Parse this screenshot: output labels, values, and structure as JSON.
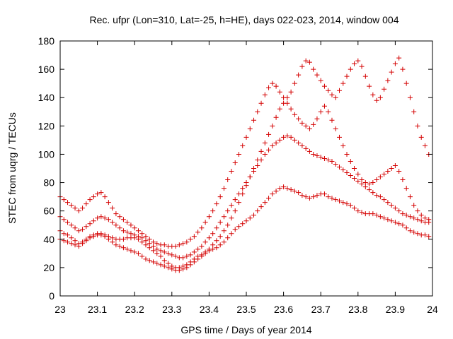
{
  "chart_data": {
    "type": "scatter",
    "title": "Rec. ufpr (Lon=310, Lat=-25, h=HE), days 022-023, 2014, window 004",
    "xlabel": "GPS time / Days of year 2014",
    "ylabel": "STEC from uqrg / TECUs",
    "xlim": [
      23,
      24
    ],
    "ylim": [
      0,
      180
    ],
    "xticks": [
      "23",
      "23.1",
      "23.2",
      "23.3",
      "23.4",
      "23.5",
      "23.6",
      "23.7",
      "23.8",
      "23.9",
      "24"
    ],
    "yticks": [
      "0",
      "20",
      "40",
      "60",
      "80",
      "100",
      "120",
      "140",
      "160",
      "180"
    ],
    "grid": false,
    "legend": "none",
    "marker": "plus",
    "color": "#d40000",
    "series": [
      {
        "x": [
          23.0,
          23.01,
          23.02,
          23.03,
          23.04,
          23.05,
          23.06,
          23.07,
          23.08,
          23.09,
          23.1,
          23.11,
          23.12,
          23.13,
          23.14,
          23.15,
          23.16,
          23.17,
          23.18,
          23.19,
          23.2,
          23.21,
          23.22,
          23.23,
          23.24,
          23.25,
          23.26,
          23.27,
          23.28,
          23.29,
          23.3,
          23.31,
          23.32,
          23.33,
          23.34,
          23.35,
          23.36,
          23.37,
          23.38,
          23.39,
          23.4,
          23.41,
          23.42,
          23.43,
          23.44,
          23.45,
          23.46,
          23.47,
          23.48,
          23.49,
          23.5,
          23.51,
          23.52,
          23.53,
          23.54,
          23.55,
          23.56,
          23.57,
          23.58,
          23.59,
          23.6,
          23.61,
          23.62,
          23.63,
          23.64,
          23.65,
          23.66,
          23.67,
          23.68,
          23.69,
          23.7,
          23.71,
          23.72,
          23.73,
          23.74,
          23.75,
          23.76,
          23.77,
          23.78,
          23.79,
          23.8,
          23.81,
          23.82,
          23.83,
          23.84,
          23.85,
          23.86,
          23.87,
          23.88,
          23.89,
          23.9,
          23.91,
          23.92,
          23.93,
          23.94,
          23.95,
          23.96,
          23.97,
          23.98,
          23.99
        ],
        "y": [
          46,
          44,
          43,
          41,
          39,
          37,
          38,
          40,
          42,
          43,
          44,
          44,
          43,
          42,
          41,
          40,
          40,
          40,
          41,
          41,
          41,
          40,
          38,
          36,
          34,
          32,
          30,
          28,
          25,
          23,
          21,
          20,
          20,
          21,
          22,
          24,
          26,
          28,
          29,
          31,
          32,
          33,
          34,
          36,
          38,
          41,
          44,
          47,
          49,
          51,
          53,
          55,
          57,
          60,
          63,
          66,
          69,
          72,
          74,
          76,
          77,
          76,
          75,
          74,
          73,
          71,
          70,
          69,
          70,
          71,
          72,
          72,
          70,
          69,
          68,
          67,
          66,
          65,
          64,
          62,
          60,
          59,
          58,
          58,
          58,
          57,
          56,
          55,
          54,
          53,
          52,
          51,
          50,
          48,
          46,
          45,
          44,
          43,
          43,
          42
        ]
      },
      {
        "x": [
          23.0,
          23.01,
          23.02,
          23.03,
          23.04,
          23.05,
          23.06,
          23.07,
          23.08,
          23.09,
          23.1,
          23.11,
          23.12,
          23.13,
          23.14,
          23.15,
          23.16,
          23.17,
          23.18,
          23.19,
          23.2,
          23.21,
          23.22,
          23.23,
          23.24,
          23.25,
          23.26,
          23.27,
          23.28,
          23.29,
          23.3,
          23.31,
          23.32,
          23.33,
          23.34,
          23.35,
          23.36,
          23.37,
          23.38,
          23.39,
          23.4,
          23.41,
          23.42,
          23.43,
          23.44,
          23.45,
          23.46,
          23.47,
          23.48,
          23.49,
          23.5,
          23.51,
          23.52,
          23.53,
          23.54,
          23.55,
          23.56,
          23.57,
          23.58,
          23.59,
          23.6,
          23.61,
          23.62,
          23.63,
          23.64,
          23.65,
          23.66,
          23.67,
          23.68,
          23.69,
          23.7,
          23.71,
          23.72,
          23.73,
          23.74,
          23.75,
          23.76,
          23.77,
          23.78,
          23.79,
          23.8,
          23.81,
          23.82,
          23.83,
          23.84,
          23.85,
          23.86,
          23.87,
          23.88,
          23.89,
          23.9,
          23.91,
          23.92,
          23.93,
          23.94,
          23.95,
          23.96,
          23.97,
          23.98,
          23.99
        ],
        "y": [
          56,
          54,
          52,
          50,
          48,
          46,
          47,
          49,
          51,
          53,
          55,
          56,
          55,
          54,
          52,
          50,
          48,
          46,
          45,
          44,
          43,
          42,
          41,
          39,
          37,
          35,
          33,
          32,
          31,
          30,
          29,
          28,
          27,
          27,
          28,
          29,
          31,
          33,
          35,
          38,
          41,
          44,
          48,
          52,
          56,
          60,
          64,
          68,
          72,
          76,
          80,
          84,
          88,
          92,
          96,
          100,
          103,
          106,
          108,
          110,
          112,
          113,
          112,
          110,
          108,
          106,
          104,
          102,
          100,
          99,
          98,
          97,
          96,
          95,
          93,
          91,
          89,
          87,
          85,
          83,
          81,
          79,
          77,
          75,
          73,
          71,
          70,
          68,
          66,
          64,
          62,
          60,
          58,
          57,
          56,
          55,
          54,
          53,
          52,
          52
        ]
      },
      {
        "x": [
          23.0,
          23.01,
          23.02,
          23.03,
          23.04,
          23.05,
          23.06,
          23.07,
          23.08,
          23.09,
          23.1,
          23.11,
          23.12,
          23.13,
          23.14,
          23.15,
          23.16,
          23.17,
          23.18,
          23.19,
          23.2,
          23.21,
          23.22,
          23.23,
          23.24,
          23.25,
          23.26,
          23.27,
          23.28,
          23.29,
          23.3,
          23.31,
          23.32,
          23.33,
          23.34,
          23.35,
          23.36,
          23.37,
          23.38,
          23.39,
          23.4,
          23.41,
          23.42,
          23.43,
          23.44,
          23.45,
          23.46,
          23.47,
          23.48,
          23.49,
          23.5,
          23.51,
          23.52,
          23.53,
          23.54,
          23.55,
          23.56,
          23.57,
          23.58,
          23.59,
          23.6,
          23.61,
          23.62,
          23.63,
          23.64,
          23.65,
          23.66,
          23.67,
          23.68,
          23.69,
          23.7,
          23.71,
          23.72,
          23.73,
          23.74,
          23.75,
          23.76,
          23.77,
          23.78,
          23.79,
          23.8,
          23.81,
          23.82,
          23.83,
          23.84,
          23.85,
          23.86,
          23.87,
          23.88,
          23.89,
          23.9,
          23.91,
          23.92,
          23.93,
          23.94,
          23.95,
          23.96,
          23.97,
          23.98,
          23.99
        ],
        "y": [
          70,
          68,
          66,
          64,
          62,
          60,
          62,
          65,
          68,
          70,
          72,
          73,
          70,
          66,
          62,
          58,
          56,
          54,
          52,
          50,
          48,
          46,
          44,
          42,
          40,
          38,
          37,
          36,
          36,
          35,
          35,
          35,
          36,
          37,
          38,
          40,
          42,
          45,
          48,
          52,
          56,
          60,
          65,
          70,
          76,
          82,
          88,
          94,
          100,
          106,
          112,
          118,
          124,
          130,
          136,
          142,
          147,
          150,
          148,
          144,
          140,
          136,
          132,
          128,
          125,
          122,
          120,
          118,
          121,
          125,
          130,
          134,
          130,
          124,
          118,
          112,
          106,
          100,
          95,
          90,
          86,
          82,
          80,
          79,
          80,
          82,
          84,
          86,
          88,
          90,
          92,
          88,
          82,
          76,
          70,
          64,
          60,
          57,
          55,
          54
        ]
      },
      {
        "x": [
          23.0,
          23.01,
          23.02,
          23.03,
          23.04,
          23.05,
          23.06,
          23.07,
          23.08,
          23.09,
          23.1,
          23.11,
          23.12,
          23.13,
          23.14,
          23.15,
          23.16,
          23.17,
          23.18,
          23.19,
          23.2,
          23.21,
          23.22,
          23.23,
          23.24,
          23.25,
          23.26,
          23.27,
          23.28,
          23.29,
          23.3,
          23.31,
          23.32,
          23.33,
          23.34,
          23.35,
          23.36,
          23.37,
          23.38,
          23.39,
          23.4,
          23.41,
          23.42,
          23.43,
          23.44,
          23.45,
          23.46,
          23.47,
          23.48,
          23.49,
          23.5,
          23.51,
          23.52,
          23.53,
          23.54,
          23.55,
          23.56,
          23.57,
          23.58,
          23.59,
          23.6,
          23.61,
          23.62,
          23.63,
          23.64,
          23.65,
          23.66,
          23.67,
          23.68,
          23.69,
          23.7,
          23.71,
          23.72,
          23.73,
          23.74,
          23.75,
          23.76,
          23.77,
          23.78,
          23.79,
          23.8,
          23.81,
          23.82,
          23.83,
          23.84,
          23.85,
          23.86,
          23.87,
          23.88,
          23.89,
          23.9,
          23.91,
          23.92,
          23.93,
          23.94,
          23.95,
          23.96,
          23.97,
          23.98,
          23.99
        ],
        "y": [
          40,
          39,
          38,
          37,
          36,
          35,
          37,
          39,
          41,
          42,
          43,
          43,
          42,
          40,
          38,
          36,
          35,
          34,
          33,
          32,
          31,
          30,
          28,
          26,
          25,
          24,
          23,
          22,
          21,
          20,
          19,
          18,
          18,
          19,
          20,
          22,
          24,
          26,
          28,
          30,
          33,
          36,
          39,
          42,
          46,
          50,
          55,
          60,
          66,
          72,
          78,
          84,
          90,
          96,
          102,
          108,
          114,
          120,
          126,
          132,
          136,
          140,
          144,
          150,
          156,
          162,
          166,
          165,
          160,
          156,
          152,
          148,
          145,
          142,
          140,
          145,
          150,
          155,
          160,
          164,
          166,
          162,
          155,
          148,
          142,
          138,
          140,
          146,
          152,
          158,
          164,
          168,
          160,
          150,
          140,
          130,
          120,
          112,
          106,
          100
        ]
      }
    ]
  }
}
